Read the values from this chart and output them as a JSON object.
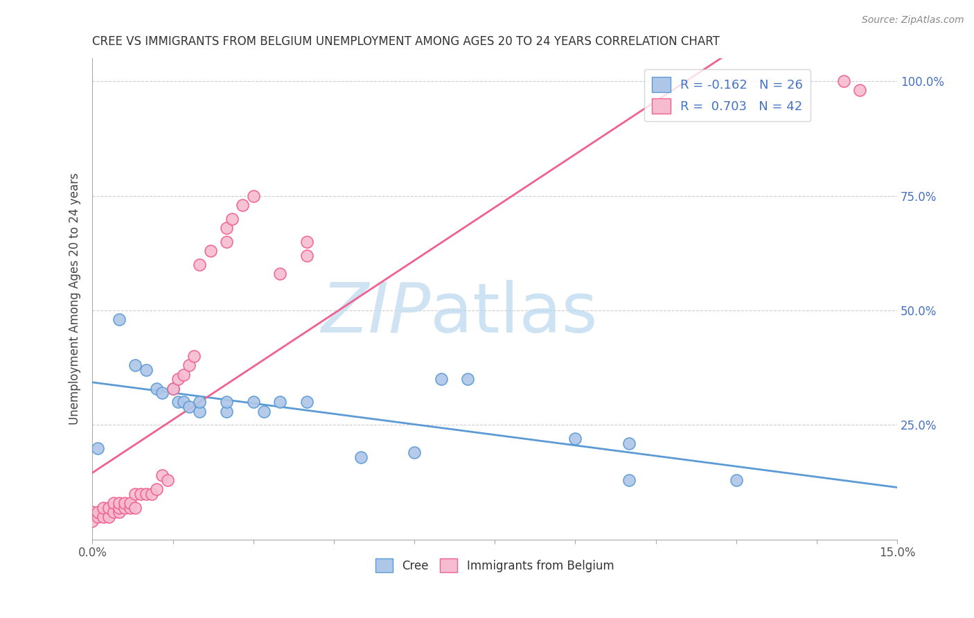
{
  "title": "CREE VS IMMIGRANTS FROM BELGIUM UNEMPLOYMENT AMONG AGES 20 TO 24 YEARS CORRELATION CHART",
  "source": "Source: ZipAtlas.com",
  "ylabel": "Unemployment Among Ages 20 to 24 years",
  "xlim": [
    0.0,
    0.15
  ],
  "ylim": [
    0.0,
    1.05
  ],
  "cree_R": -0.162,
  "cree_N": 26,
  "belgium_R": 0.703,
  "belgium_N": 42,
  "cree_color": "#aec6e8",
  "cree_edge_color": "#5b9bd5",
  "belgium_color": "#f5bcd0",
  "belgium_edge_color": "#f06090",
  "watermark_text": "ZIPatlas",
  "watermark_color": "#d5eaf5",
  "legend_text_color": "#4472c4",
  "ytick_color": "#4472c4",
  "cree_x": [
    0.001,
    0.005,
    0.008,
    0.01,
    0.012,
    0.013,
    0.015,
    0.016,
    0.017,
    0.018,
    0.02,
    0.02,
    0.025,
    0.025,
    0.03,
    0.032,
    0.035,
    0.04,
    0.05,
    0.06,
    0.065,
    0.07,
    0.09,
    0.1,
    0.1,
    0.12
  ],
  "cree_y": [
    0.2,
    0.48,
    0.38,
    0.37,
    0.33,
    0.32,
    0.33,
    0.3,
    0.3,
    0.29,
    0.28,
    0.3,
    0.28,
    0.3,
    0.3,
    0.28,
    0.3,
    0.3,
    0.18,
    0.19,
    0.35,
    0.35,
    0.22,
    0.21,
    0.13,
    0.13
  ],
  "belgium_x": [
    0.0,
    0.0,
    0.001,
    0.001,
    0.002,
    0.002,
    0.003,
    0.003,
    0.004,
    0.004,
    0.005,
    0.005,
    0.005,
    0.006,
    0.006,
    0.007,
    0.007,
    0.008,
    0.008,
    0.009,
    0.01,
    0.011,
    0.012,
    0.013,
    0.014,
    0.015,
    0.016,
    0.017,
    0.018,
    0.019,
    0.02,
    0.022,
    0.025,
    0.025,
    0.026,
    0.028,
    0.03,
    0.035,
    0.04,
    0.04,
    0.14,
    0.143
  ],
  "belgium_y": [
    0.04,
    0.06,
    0.05,
    0.06,
    0.05,
    0.07,
    0.05,
    0.07,
    0.06,
    0.08,
    0.06,
    0.07,
    0.08,
    0.07,
    0.08,
    0.07,
    0.08,
    0.07,
    0.1,
    0.1,
    0.1,
    0.1,
    0.11,
    0.14,
    0.13,
    0.33,
    0.35,
    0.36,
    0.38,
    0.4,
    0.6,
    0.63,
    0.65,
    0.68,
    0.7,
    0.73,
    0.75,
    0.58,
    0.62,
    0.65,
    1.0,
    0.98
  ]
}
